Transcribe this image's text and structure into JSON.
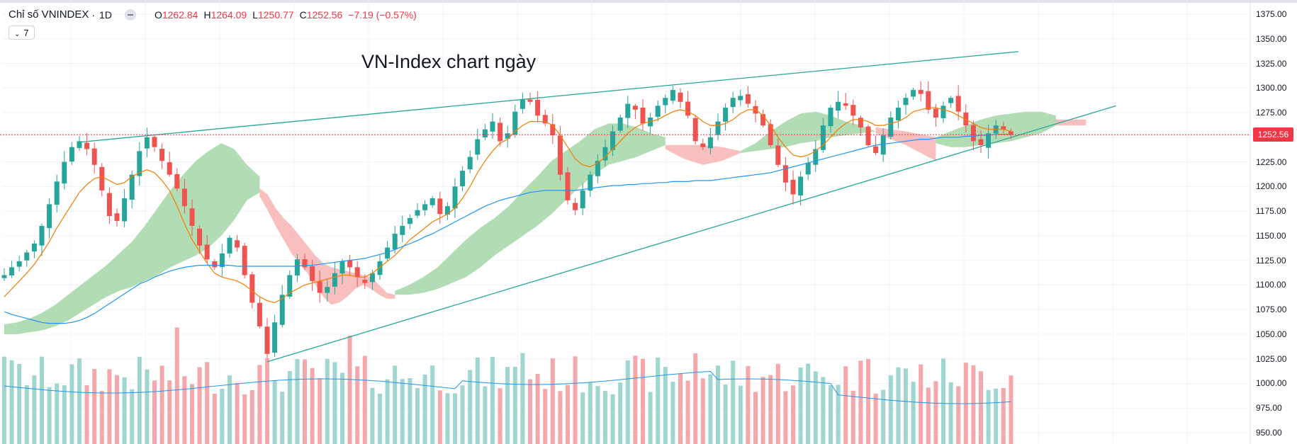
{
  "header": {
    "symbol": "Chỉ số VNINDEX",
    "separator": "·",
    "timeframe": "1D",
    "open_label": "O",
    "open": "1262.84",
    "high_label": "H",
    "high": "1264.09",
    "low_label": "L",
    "low": "1250.77",
    "close_label": "C",
    "close": "1252.56",
    "change": "−7.19 (−0.57%)",
    "indicators_count": "7"
  },
  "annotation": "VN-Index chart ngày",
  "last_price": "1252.56",
  "colors": {
    "up": "#26a69a",
    "down": "#ef5350",
    "vol_up": "#9fd6cf",
    "vol_down": "#f5a8ac",
    "cloud_bull": "#a5d6a7",
    "cloud_bear": "#f8b4b4",
    "sma_short": "#f57c00",
    "sma_long": "#2196f3",
    "trendline": "#26a69a",
    "price_line": "#f23645"
  },
  "chart_data": {
    "type": "candlestick",
    "ylim": [
      950,
      1375
    ],
    "y_ticks": [
      "1375.00",
      "1350.00",
      "1325.00",
      "1300.00",
      "1275.00",
      "1250.00",
      "1225.00",
      "1200.00",
      "1175.00",
      "1150.00",
      "1125.00",
      "1100.00",
      "1075.00",
      "1050.00",
      "1025.00",
      "1000.00",
      "975.00",
      "950.00"
    ],
    "close_path": [
      1110,
      1118,
      1124,
      1133,
      1142,
      1160,
      1182,
      1205,
      1225,
      1240,
      1246,
      1238,
      1222,
      1196,
      1170,
      1165,
      1188,
      1212,
      1236,
      1250,
      1240,
      1226,
      1212,
      1198,
      1180,
      1160,
      1140,
      1126,
      1118,
      1132,
      1148,
      1138,
      1110,
      1082,
      1058,
      1030,
      1062,
      1090,
      1110,
      1126,
      1118,
      1104,
      1092,
      1098,
      1112,
      1124,
      1118,
      1108,
      1102,
      1112,
      1124,
      1138,
      1152,
      1160,
      1168,
      1176,
      1182,
      1188,
      1172,
      1180,
      1200,
      1216,
      1230,
      1248,
      1258,
      1266,
      1246,
      1254,
      1276,
      1288,
      1286,
      1272,
      1264,
      1252,
      1212,
      1186,
      1176,
      1196,
      1212,
      1226,
      1240,
      1256,
      1270,
      1284,
      1278,
      1264,
      1270,
      1282,
      1290,
      1298,
      1286,
      1272,
      1246,
      1240,
      1250,
      1266,
      1280,
      1290,
      1292,
      1284,
      1274,
      1262,
      1242,
      1222,
      1204,
      1192,
      1210,
      1224,
      1238,
      1262,
      1280,
      1286,
      1282,
      1272,
      1260,
      1242,
      1234,
      1252,
      1270,
      1280,
      1290,
      1298,
      1294,
      1278,
      1270,
      1282,
      1290,
      1276,
      1262,
      1246,
      1242,
      1254,
      1262,
      1258,
      1252.56
    ],
    "sma_short": [
      1088,
      1096,
      1104,
      1112,
      1121,
      1132,
      1144,
      1158,
      1170,
      1182,
      1194,
      1202,
      1208,
      1210,
      1206,
      1202,
      1204,
      1210,
      1214,
      1217,
      1214,
      1206,
      1196,
      1180,
      1162,
      1146,
      1134,
      1122,
      1112,
      1108,
      1106,
      1104,
      1100,
      1094,
      1088,
      1084,
      1082,
      1086,
      1092,
      1096,
      1100,
      1102,
      1104,
      1106,
      1108,
      1110,
      1110,
      1108,
      1108,
      1112,
      1118,
      1124,
      1130,
      1138,
      1146,
      1152,
      1158,
      1164,
      1168,
      1172,
      1178,
      1188,
      1200,
      1214,
      1226,
      1236,
      1244,
      1248,
      1256,
      1262,
      1266,
      1266,
      1266,
      1262,
      1252,
      1240,
      1228,
      1222,
      1220,
      1224,
      1230,
      1238,
      1246,
      1254,
      1260,
      1264,
      1266,
      1268,
      1272,
      1276,
      1278,
      1276,
      1272,
      1266,
      1262,
      1262,
      1264,
      1268,
      1274,
      1278,
      1278,
      1272,
      1262,
      1250,
      1240,
      1232,
      1230,
      1232,
      1236,
      1242,
      1250,
      1258,
      1264,
      1268,
      1268,
      1266,
      1262,
      1262,
      1264,
      1266,
      1270,
      1276,
      1278,
      1280,
      1280,
      1278,
      1276,
      1272,
      1268,
      1264,
      1260,
      1258,
      1258,
      1258,
      1256
    ],
    "sma_long": [
      1073,
      1070,
      1068,
      1066,
      1064,
      1062,
      1061,
      1061,
      1061,
      1062,
      1064,
      1067,
      1071,
      1076,
      1081,
      1086,
      1091,
      1096,
      1101,
      1104,
      1108,
      1111,
      1114,
      1116,
      1118,
      1119,
      1120,
      1120,
      1120,
      1120,
      1120,
      1119,
      1119,
      1119,
      1119,
      1119,
      1119,
      1119,
      1119,
      1119,
      1120,
      1120,
      1121,
      1122,
      1123,
      1124,
      1125,
      1126,
      1127,
      1129,
      1131,
      1133,
      1136,
      1139,
      1142,
      1145,
      1149,
      1152,
      1156,
      1160,
      1164,
      1168,
      1172,
      1176,
      1180,
      1183,
      1186,
      1188,
      1190,
      1192,
      1194,
      1195,
      1196,
      1196,
      1196,
      1196,
      1196,
      1197,
      1198,
      1199,
      1200,
      1201,
      1201,
      1202,
      1202,
      1203,
      1203,
      1204,
      1204,
      1205,
      1205,
      1205,
      1206,
      1206,
      1206,
      1207,
      1208,
      1209,
      1210,
      1211,
      1212,
      1213,
      1214,
      1216,
      1218,
      1220,
      1222,
      1224,
      1226,
      1228,
      1230,
      1232,
      1234,
      1236,
      1238,
      1240,
      1242,
      1243,
      1244,
      1245,
      1246,
      1247,
      1248,
      1248,
      1249,
      1250,
      1250,
      1250,
      1251,
      1251,
      1252,
      1252,
      1253,
      1253,
      1253
    ],
    "cloud": [
      {
        "kind": "bull",
        "upper": [
          1060,
          1062,
          1066,
          1072,
          1080,
          1090,
          1100,
          1110,
          1120,
          1132,
          1144,
          1160,
          1178,
          1196,
          1212,
          1226,
          1236,
          1244,
          1238,
          1222,
          1210
        ],
        "lower": [
          1050,
          1050,
          1052,
          1054,
          1058,
          1064,
          1072,
          1080,
          1088,
          1094,
          1098,
          1104,
          1110,
          1118,
          1124,
          1130,
          1138,
          1150,
          1166,
          1186,
          1194
        ],
        "x0": 0,
        "x1": 34
      },
      {
        "kind": "bear",
        "upper": [
          1198,
          1192,
          1178,
          1168,
          1160,
          1150,
          1140,
          1130,
          1122,
          1118,
          1116,
          1114,
          1112,
          1110,
          1108,
          1100,
          1092,
          1090
        ],
        "lower": [
          1190,
          1176,
          1160,
          1146,
          1132,
          1122,
          1112,
          1100,
          1088,
          1080,
          1082,
          1088,
          1096,
          1100,
          1096,
          1090,
          1086,
          1086
        ],
        "x0": 34,
        "x1": 52
      },
      {
        "kind": "bull",
        "upper": [
          1094,
          1100,
          1108,
          1118,
          1132,
          1146,
          1158,
          1168,
          1180,
          1196,
          1210,
          1226,
          1236,
          1246,
          1258,
          1264,
          1264,
          1260,
          1254,
          1250
        ],
        "lower": [
          1090,
          1090,
          1092,
          1096,
          1102,
          1108,
          1118,
          1130,
          1140,
          1150,
          1160,
          1172,
          1186,
          1200,
          1212,
          1222,
          1226,
          1230,
          1236,
          1242
        ],
        "x0": 52,
        "x1": 88
      },
      {
        "kind": "bear",
        "upper": [
          1242,
          1242,
          1242,
          1240,
          1236
        ],
        "lower": [
          1238,
          1228,
          1222,
          1226,
          1234
        ],
        "x0": 88,
        "x1": 98
      },
      {
        "kind": "bull",
        "upper": [
          1236,
          1244,
          1256,
          1266,
          1274,
          1276,
          1272,
          1266,
          1262,
          1256
        ],
        "lower": [
          1234,
          1236,
          1238,
          1240,
          1244,
          1246,
          1250,
          1252,
          1254,
          1256
        ],
        "x0": 98,
        "x1": 116
      },
      {
        "kind": "bear",
        "upper": [
          1260,
          1256,
          1250
        ],
        "lower": [
          1254,
          1242,
          1226
        ],
        "x0": 116,
        "x1": 124
      },
      {
        "kind": "bull",
        "upper": [
          1250,
          1256,
          1262,
          1268,
          1272,
          1274,
          1276,
          1276,
          1272
        ],
        "lower": [
          1244,
          1240,
          1240,
          1242,
          1244,
          1246,
          1250,
          1254,
          1262
        ],
        "x0": 124,
        "x1": 140
      },
      {
        "kind": "bear",
        "upper": [
          1268,
          1268,
          1268
        ],
        "lower": [
          1262,
          1262,
          1262
        ],
        "x0": 140,
        "x1": 144
      }
    ],
    "trendlines": [
      {
        "from": [
          10,
          1245
        ],
        "to": [
          135,
          1337
        ]
      },
      {
        "from": [
          35,
          1022
        ],
        "to": [
          148,
          1282
        ]
      }
    ],
    "volume_ylim": [
      0,
      70
    ]
  }
}
